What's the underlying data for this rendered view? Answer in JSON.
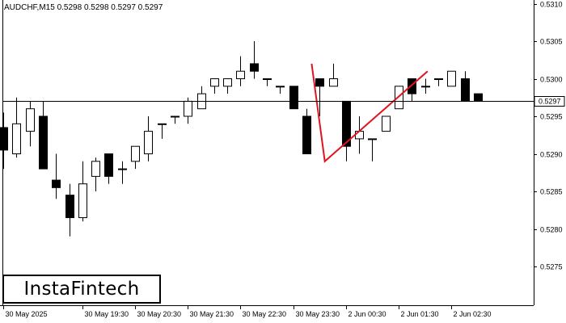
{
  "chart_header": {
    "symbol_label": "AUDCHF,M15",
    "ohlc_values": "0.5298 0.5298 0.5297 0.5297"
  },
  "logo": {
    "text": "InstaFintech"
  },
  "colors": {
    "background": "#ffffff",
    "axis": "#000000",
    "bullish_body": "#ffffff",
    "bearish_body": "#000000",
    "pattern_line": "#e0141e",
    "current_price_line": "#000000"
  },
  "chart_data": {
    "type": "candlestick",
    "symbol": "AUDCHF",
    "timeframe": "M15",
    "ylim": [
      0.527,
      0.531
    ],
    "y_ticks": [
      "0.5310",
      "0.5305",
      "0.5300",
      "0.5295",
      "0.5290",
      "0.5285",
      "0.5280",
      "0.5275"
    ],
    "x_ticks": [
      {
        "label": "30 May 2025",
        "index": 0
      },
      {
        "label": "30 May 19:30",
        "index": 6
      },
      {
        "label": "30 May 20:30",
        "index": 10
      },
      {
        "label": "30 May 21:30",
        "index": 14
      },
      {
        "label": "30 May 22:30",
        "index": 18
      },
      {
        "label": "30 May 23:30",
        "index": 22
      },
      {
        "label": "2 Jun 00:30",
        "index": 26
      },
      {
        "label": "2 Jun 01:30",
        "index": 30
      },
      {
        "label": "2 Jun 02:30",
        "index": 34
      }
    ],
    "current_price": 0.5297,
    "current_price_label": "0.5297",
    "grid": false,
    "candles": [
      {
        "o": 0.52935,
        "h": 0.52955,
        "l": 0.5288,
        "c": 0.52905
      },
      {
        "o": 0.529,
        "h": 0.52975,
        "l": 0.52895,
        "c": 0.5294
      },
      {
        "o": 0.5293,
        "h": 0.5297,
        "l": 0.5291,
        "c": 0.5296
      },
      {
        "o": 0.5295,
        "h": 0.5297,
        "l": 0.5288,
        "c": 0.5288
      },
      {
        "o": 0.52865,
        "h": 0.529,
        "l": 0.5284,
        "c": 0.52855
      },
      {
        "o": 0.52845,
        "h": 0.5286,
        "l": 0.5279,
        "c": 0.52815
      },
      {
        "o": 0.52815,
        "h": 0.5289,
        "l": 0.5281,
        "c": 0.5286
      },
      {
        "o": 0.5287,
        "h": 0.52895,
        "l": 0.5285,
        "c": 0.5289
      },
      {
        "o": 0.529,
        "h": 0.529,
        "l": 0.5286,
        "c": 0.5287
      },
      {
        "o": 0.5288,
        "h": 0.5289,
        "l": 0.5286,
        "c": 0.5288
      },
      {
        "o": 0.5289,
        "h": 0.5291,
        "l": 0.5288,
        "c": 0.5291
      },
      {
        "o": 0.529,
        "h": 0.5295,
        "l": 0.5289,
        "c": 0.5293
      },
      {
        "o": 0.5294,
        "h": 0.5294,
        "l": 0.5292,
        "c": 0.5294
      },
      {
        "o": 0.5295,
        "h": 0.5295,
        "l": 0.5294,
        "c": 0.5295
      },
      {
        "o": 0.5295,
        "h": 0.52975,
        "l": 0.5294,
        "c": 0.5297
      },
      {
        "o": 0.5296,
        "h": 0.5299,
        "l": 0.5296,
        "c": 0.5298
      },
      {
        "o": 0.5299,
        "h": 0.53,
        "l": 0.5298,
        "c": 0.53
      },
      {
        "o": 0.5299,
        "h": 0.53,
        "l": 0.5298,
        "c": 0.53
      },
      {
        "o": 0.53,
        "h": 0.5303,
        "l": 0.5299,
        "c": 0.5301
      },
      {
        "o": 0.5302,
        "h": 0.5305,
        "l": 0.53,
        "c": 0.5301
      },
      {
        "o": 0.53,
        "h": 0.53,
        "l": 0.5299,
        "c": 0.53
      },
      {
        "o": 0.5299,
        "h": 0.5299,
        "l": 0.5298,
        "c": 0.5299
      },
      {
        "o": 0.5299,
        "h": 0.5299,
        "l": 0.5296,
        "c": 0.5296
      },
      {
        "o": 0.5295,
        "h": 0.5296,
        "l": 0.529,
        "c": 0.529
      },
      {
        "o": 0.53,
        "h": 0.53,
        "l": 0.5295,
        "c": 0.5299
      },
      {
        "o": 0.5299,
        "h": 0.5302,
        "l": 0.5299,
        "c": 0.53
      },
      {
        "o": 0.5297,
        "h": 0.5297,
        "l": 0.5289,
        "c": 0.5291
      },
      {
        "o": 0.5292,
        "h": 0.5295,
        "l": 0.529,
        "c": 0.5293
      },
      {
        "o": 0.5292,
        "h": 0.5292,
        "l": 0.5289,
        "c": 0.5292
      },
      {
        "o": 0.5293,
        "h": 0.5295,
        "l": 0.5293,
        "c": 0.5295
      },
      {
        "o": 0.5296,
        "h": 0.5299,
        "l": 0.5296,
        "c": 0.5299
      },
      {
        "o": 0.53,
        "h": 0.53,
        "l": 0.5297,
        "c": 0.5298
      },
      {
        "o": 0.5299,
        "h": 0.53,
        "l": 0.5298,
        "c": 0.5299
      },
      {
        "o": 0.53,
        "h": 0.53,
        "l": 0.5299,
        "c": 0.53
      },
      {
        "o": 0.5299,
        "h": 0.5301,
        "l": 0.5299,
        "c": 0.5301
      },
      {
        "o": 0.53,
        "h": 0.5301,
        "l": 0.5297,
        "c": 0.5297
      },
      {
        "o": 0.5298,
        "h": 0.5298,
        "l": 0.5297,
        "c": 0.5297
      }
    ],
    "pattern": {
      "points": [
        {
          "index": 23.4,
          "price": 0.5302
        },
        {
          "index": 24.4,
          "price": 0.5289
        },
        {
          "index": 32.2,
          "price": 0.5301
        }
      ]
    }
  }
}
